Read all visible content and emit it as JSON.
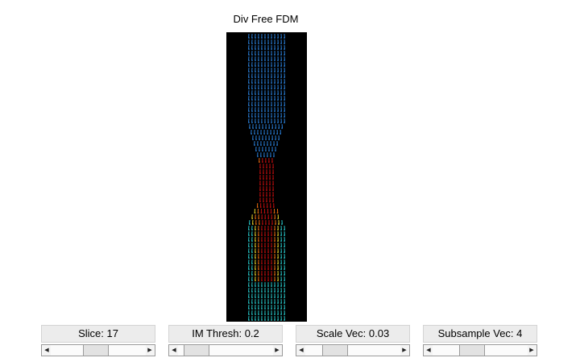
{
  "figure": {
    "title": "Div Free FDM"
  },
  "controls": [
    {
      "label": "Slice: 17",
      "value": 0.45
    },
    {
      "label": "IM Thresh: 0.2",
      "value": 0.08
    },
    {
      "label": "Scale Vec: 0.03",
      "value": 0.24
    },
    {
      "label": "Subsample Vec: 4",
      "value": 0.38
    }
  ],
  "colors": {
    "background": "#000000",
    "jet_low": "#2a7fd8",
    "jet_mid": "#27c7c9",
    "jet_high": "#c40e0e"
  }
}
